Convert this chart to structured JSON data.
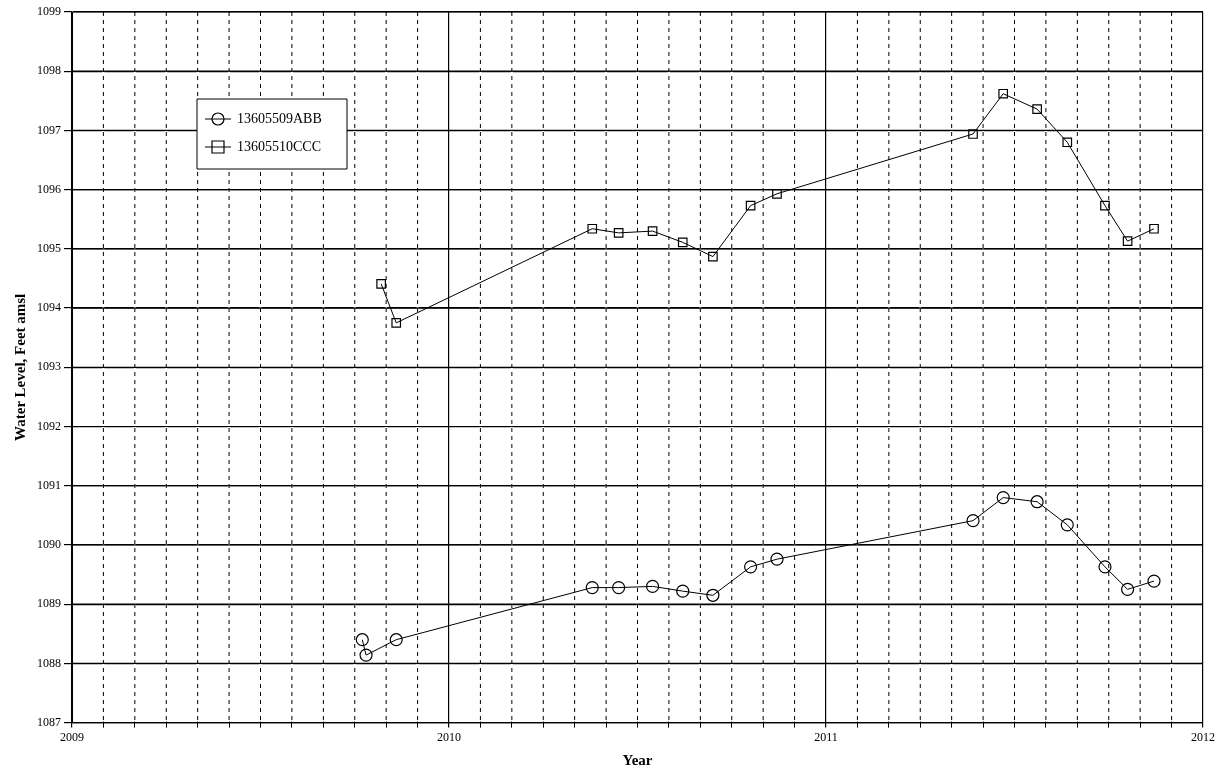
{
  "chart_data": {
    "type": "line",
    "xlabel": "Year",
    "ylabel": "Water Level, Feet amsl",
    "xlim": [
      2009,
      2012
    ],
    "ylim": [
      1087,
      1099
    ],
    "xticks": [
      2009,
      {
        "value": 2009.0833,
        "label": null
      },
      {
        "value": 2009.1667,
        "label": null
      },
      {
        "value": 2009.25,
        "label": null
      },
      {
        "value": 2009.3333,
        "label": null
      },
      {
        "value": 2009.4167,
        "label": null
      },
      {
        "value": 2009.5,
        "label": null
      },
      {
        "value": 2009.5833,
        "label": null
      },
      {
        "value": 2009.6667,
        "label": null
      },
      {
        "value": 2009.75,
        "label": null
      },
      {
        "value": 2009.8333,
        "label": null
      },
      {
        "value": 2009.9167,
        "label": null
      },
      2010,
      {
        "value": 2010.0833,
        "label": null
      },
      {
        "value": 2010.1667,
        "label": null
      },
      {
        "value": 2010.25,
        "label": null
      },
      {
        "value": 2010.3333,
        "label": null
      },
      {
        "value": 2010.4167,
        "label": null
      },
      {
        "value": 2010.5,
        "label": null
      },
      {
        "value": 2010.5833,
        "label": null
      },
      {
        "value": 2010.6667,
        "label": null
      },
      {
        "value": 2010.75,
        "label": null
      },
      {
        "value": 2010.8333,
        "label": null
      },
      {
        "value": 2010.9167,
        "label": null
      },
      2011,
      {
        "value": 2011.0833,
        "label": null
      },
      {
        "value": 2011.1667,
        "label": null
      },
      {
        "value": 2011.25,
        "label": null
      },
      {
        "value": 2011.3333,
        "label": null
      },
      {
        "value": 2011.4167,
        "label": null
      },
      {
        "value": 2011.5,
        "label": null
      },
      {
        "value": 2011.5833,
        "label": null
      },
      {
        "value": 2011.6667,
        "label": null
      },
      {
        "value": 2011.75,
        "label": null
      },
      {
        "value": 2011.8333,
        "label": null
      },
      {
        "value": 2011.9167,
        "label": null
      },
      2012
    ],
    "yticks": [
      1087,
      1088,
      1089,
      1090,
      1091,
      1092,
      1093,
      1094,
      1095,
      1096,
      1097,
      1098,
      1099
    ],
    "grid": true,
    "legend": "top left",
    "line_style": "solid",
    "series": [
      {
        "name": "13605509ABB",
        "color": "#000000",
        "marker": "circle",
        "x": [
          2009.77,
          2009.78,
          2009.86,
          2010.38,
          2010.45,
          2010.54,
          2010.62,
          2010.7,
          2010.8,
          2010.87,
          2011.39,
          2011.47,
          2011.56,
          2011.64,
          2011.74,
          2011.8,
          2011.87
        ],
        "values": [
          1088.4,
          1088.14,
          1088.4,
          1089.28,
          1089.28,
          1089.3,
          1089.22,
          1089.15,
          1089.63,
          1089.76,
          1090.41,
          1090.8,
          1090.73,
          1090.34,
          1089.63,
          1089.25,
          1089.39
        ]
      },
      {
        "name": "13605510CCC",
        "color": "#000000",
        "marker": "square",
        "x": [
          2009.82,
          2009.86,
          2010.38,
          2010.45,
          2010.54,
          2010.62,
          2010.7,
          2010.8,
          2010.87,
          2011.39,
          2011.47,
          2011.56,
          2011.64,
          2011.74,
          2011.8,
          2011.87
        ],
        "values": [
          1094.41,
          1093.75,
          1095.34,
          1095.27,
          1095.3,
          1095.11,
          1094.87,
          1095.73,
          1095.93,
          1096.94,
          1097.62,
          1097.36,
          1096.8,
          1095.73,
          1095.13,
          1095.34
        ]
      }
    ]
  }
}
